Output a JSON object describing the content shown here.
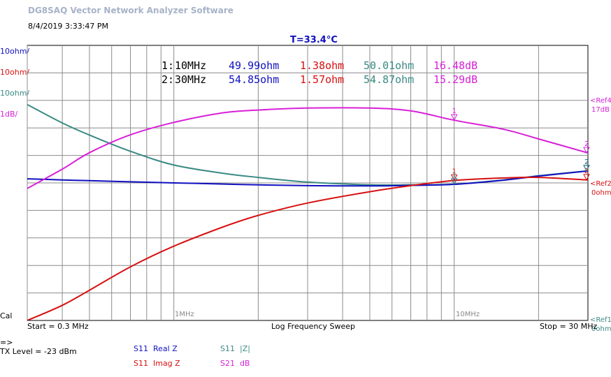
{
  "app_title": "DG8SAQ Vector Network Analyzer Software",
  "date": "8/4/2019",
  "time": "3:33:47 PM",
  "temperature": "T=33.4°C",
  "colors": {
    "real_z": "#1010c0",
    "imag_z": "#d81010",
    "abs_z": "#3a8a84",
    "s21_db": "#d820d8",
    "grid": "#888888"
  },
  "scale_labels": {
    "real": "10ohm/",
    "imag": "10ohm/",
    "abs": "10ohm/",
    "s21": "1dB/",
    "cal": "Cal"
  },
  "ref_labels": {
    "ref4": "<Ref4",
    "ref4_value": "17dB",
    "ref2": "<Ref2",
    "ref2_value": "0ohm",
    "ref1": "<Ref1",
    "ref1_value": "0ohm"
  },
  "markers": [
    {
      "label": "1:",
      "freq": "10MHz",
      "real": "49.99ohm",
      "imag": "1.38ohm",
      "abs": "50.01ohm",
      "s21": "16.48dB"
    },
    {
      "label": "2:",
      "freq": "30MHz",
      "real": "54.85ohm",
      "imag": "1.57ohm",
      "abs": "54.87ohm",
      "s21": "15.29dB"
    }
  ],
  "axis": {
    "start": "Start = 0.3 MHz",
    "mode": "Log Frequency Sweep",
    "stop": "Stop = 30 MHz",
    "tick_1mhz": "1MHz",
    "tick_10mhz": "10MHz"
  },
  "status": {
    "arrow": "=>",
    "tx_level": "TX Level = -23 dBm"
  },
  "legend": [
    {
      "param": "S11",
      "name": "Real Z"
    },
    {
      "param": "S11",
      "name": "Imag Z"
    },
    {
      "param": "S11",
      "name": "|Z|"
    },
    {
      "param": "S21",
      "name": "dB"
    }
  ],
  "chart_data": {
    "type": "line",
    "x_scale": "log",
    "xlim": [
      0.3,
      30
    ],
    "x_unit": "MHz",
    "x_ticks": [
      "1MHz",
      "10MHz"
    ],
    "grid": true,
    "divisions": 10,
    "x": [
      0.3,
      0.4,
      0.5,
      0.7,
      1,
      1.5,
      2,
      3,
      5,
      7,
      10,
      15,
      20,
      30
    ],
    "series": [
      {
        "name": "Real Z",
        "scale": "10ohm/div",
        "ref": "0ohm",
        "values": [
          52.0,
          51.6,
          51.3,
          50.9,
          50.5,
          50.1,
          49.8,
          49.5,
          49.4,
          49.6,
          49.99,
          51.5,
          53.0,
          54.85
        ]
      },
      {
        "name": "Imag Z",
        "scale": "10ohm/div",
        "ref": "0ohm",
        "values": [
          -49.5,
          -44.0,
          -38.5,
          -30.0,
          -22.5,
          -15.5,
          -11.3,
          -6.8,
          -2.7,
          -0.5,
          1.38,
          2.3,
          2.5,
          1.57
        ]
      },
      {
        "name": "|Z|",
        "scale": "10ohm/div",
        "ref": "0ohm",
        "values": [
          79.0,
          72.3,
          67.9,
          62.0,
          57.0,
          54.0,
          52.5,
          50.8,
          49.8,
          49.8,
          50.01,
          51.6,
          53.1,
          54.87
        ]
      },
      {
        "name": "S21 dB",
        "scale": "1dB/div",
        "ref": "17dB",
        "values": [
          14.0,
          14.7,
          15.3,
          15.95,
          16.4,
          16.75,
          16.85,
          16.92,
          16.92,
          16.82,
          16.48,
          16.15,
          15.8,
          15.29
        ]
      }
    ]
  }
}
